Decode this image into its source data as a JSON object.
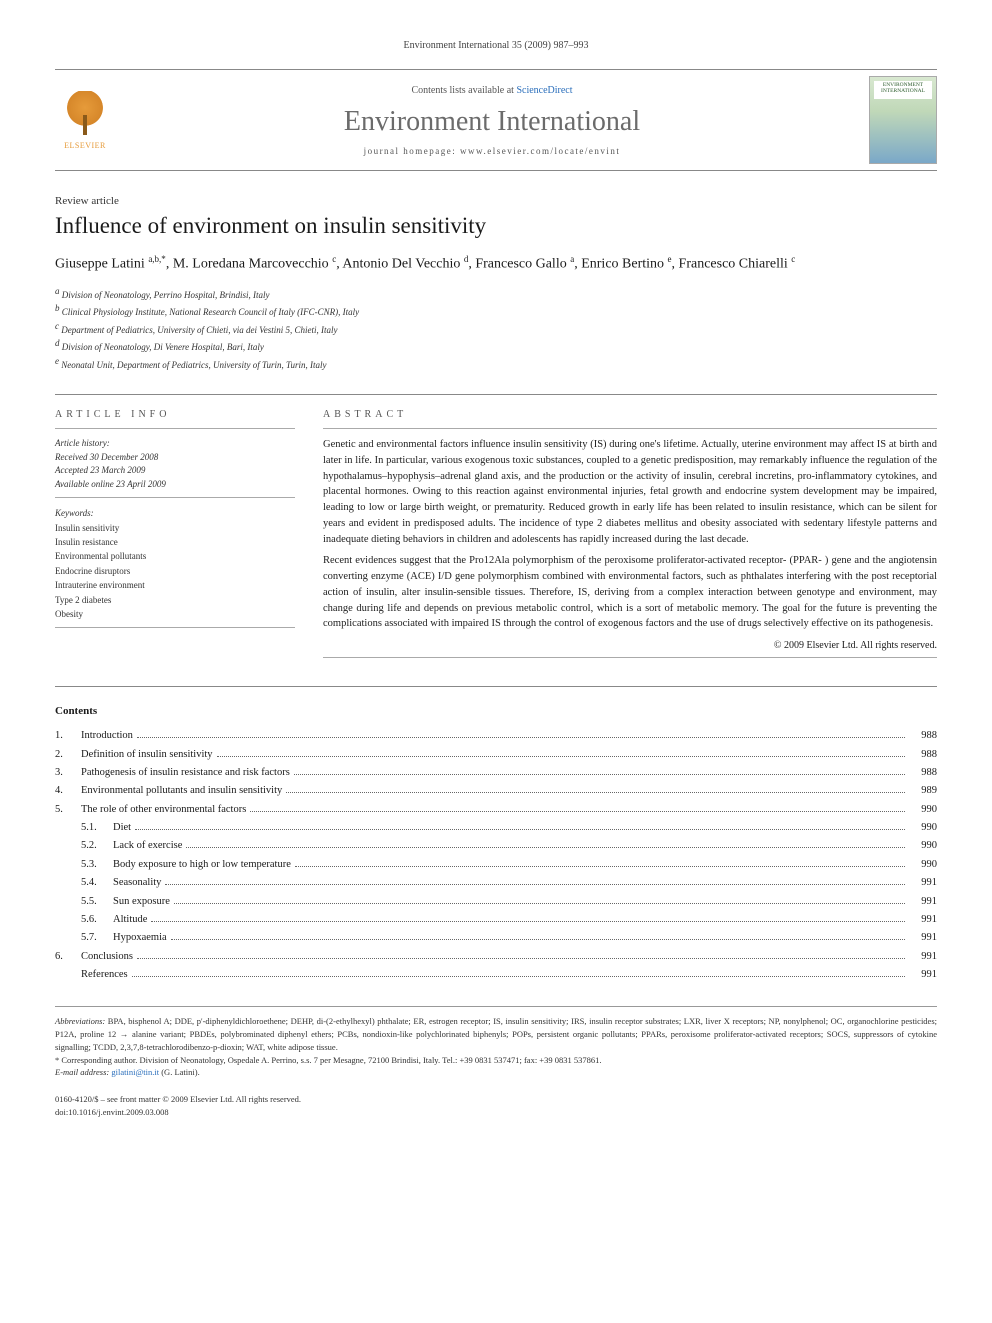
{
  "running_head": "Environment International 35 (2009) 987–993",
  "header": {
    "contents_prefix": "Contents lists available at ",
    "contents_link": "ScienceDirect",
    "journal_name": "Environment International",
    "homepage_prefix": "journal homepage: ",
    "homepage_url": "www.elsevier.com/locate/envint",
    "elsevier_label": "ELSEVIER",
    "cover_label": "ENVIRONMENT INTERNATIONAL"
  },
  "article": {
    "type": "Review article",
    "title": "Influence of environment on insulin sensitivity",
    "authors_html": "Giuseppe Latini <sup>a,b,*</sup>, M. Loredana Marcovecchio <sup>c</sup>, Antonio Del Vecchio <sup>d</sup>, Francesco Gallo <sup>a</sup>, Enrico Bertino <sup>e</sup>, Francesco Chiarelli <sup>c</sup>",
    "affiliations": [
      {
        "tag": "a",
        "text": "Division of Neonatology, Perrino Hospital, Brindisi, Italy"
      },
      {
        "tag": "b",
        "text": "Clinical Physiology Institute, National Research Council of Italy (IFC-CNR), Italy"
      },
      {
        "tag": "c",
        "text": "Department of Pediatrics, University of Chieti, via dei Vestini 5, Chieti, Italy"
      },
      {
        "tag": "d",
        "text": "Division of Neonatology, Di Venere Hospital, Bari, Italy"
      },
      {
        "tag": "e",
        "text": "Neonatal Unit, Department of Pediatrics, University of Turin, Turin, Italy"
      }
    ]
  },
  "info": {
    "head": "ARTICLE INFO",
    "history_label": "Article history:",
    "received": "Received 30 December 2008",
    "accepted": "Accepted 23 March 2009",
    "online": "Available online 23 April 2009",
    "keywords_label": "Keywords:",
    "keywords": [
      "Insulin sensitivity",
      "Insulin resistance",
      "Environmental pollutants",
      "Endocrine disruptors",
      "Intrauterine environment",
      "Type 2 diabetes",
      "Obesity"
    ]
  },
  "abstract": {
    "head": "ABSTRACT",
    "para1": "Genetic and environmental factors influence insulin sensitivity (IS) during one's lifetime. Actually, uterine environment may affect IS at birth and later in life. In particular, various exogenous toxic substances, coupled to a genetic predisposition, may remarkably influence the regulation of the hypothalamus–hypophysis–adrenal gland axis, and the production or the activity of insulin, cerebral incretins, pro-inflammatory cytokines, and placental hormones. Owing to this reaction against environmental injuries, fetal growth and endocrine system development may be impaired, leading to low or large birth weight, or prematurity. Reduced growth in early life has been related to insulin resistance, which can be silent for years and evident in predisposed adults. The incidence of type 2 diabetes mellitus and obesity associated with sedentary lifestyle patterns and inadequate dieting behaviors in children and adolescents has rapidly increased during the last decade.",
    "para2": "Recent evidences suggest that the Pro12Ala polymorphism of the peroxisome proliferator-activated receptor- (PPAR- ) gene and the angiotensin converting enzyme (ACE) I/D gene polymorphism combined with environmental factors, such as phthalates interfering with the post receptorial action of insulin, alter insulin-sensible tissues. Therefore, IS, deriving from a complex interaction between genotype and environment, may change during life and depends on previous metabolic control, which is a sort of metabolic memory. The goal for the future is preventing the complications associated with impaired IS through the control of exogenous factors and the use of drugs selectively effective on its pathogenesis.",
    "copyright": "© 2009 Elsevier Ltd. All rights reserved."
  },
  "toc": {
    "head": "Contents",
    "items": [
      {
        "num": "1.",
        "label": "Introduction",
        "page": "988",
        "sub": false
      },
      {
        "num": "2.",
        "label": "Definition of insulin sensitivity",
        "page": "988",
        "sub": false
      },
      {
        "num": "3.",
        "label": "Pathogenesis of insulin resistance and risk factors",
        "page": "988",
        "sub": false
      },
      {
        "num": "4.",
        "label": "Environmental pollutants and insulin sensitivity",
        "page": "989",
        "sub": false
      },
      {
        "num": "5.",
        "label": "The role of other environmental factors",
        "page": "990",
        "sub": false
      },
      {
        "num": "5.1.",
        "label": "Diet",
        "page": "990",
        "sub": true
      },
      {
        "num": "5.2.",
        "label": "Lack of exercise",
        "page": "990",
        "sub": true
      },
      {
        "num": "5.3.",
        "label": "Body exposure to high or low temperature",
        "page": "990",
        "sub": true
      },
      {
        "num": "5.4.",
        "label": "Seasonality",
        "page": "991",
        "sub": true
      },
      {
        "num": "5.5.",
        "label": "Sun exposure",
        "page": "991",
        "sub": true
      },
      {
        "num": "5.6.",
        "label": "Altitude",
        "page": "991",
        "sub": true
      },
      {
        "num": "5.7.",
        "label": "Hypoxaemia",
        "page": "991",
        "sub": true
      },
      {
        "num": "6.",
        "label": "Conclusions",
        "page": "991",
        "sub": false
      },
      {
        "num": "",
        "label": "References",
        "page": "991",
        "sub": false
      }
    ]
  },
  "footnotes": {
    "abbrev_label": "Abbreviations:",
    "abbrev_text": " BPA, bisphenol A; DDE, p'-diphenyldichloroethene; DEHP, di-(2-ethylhexyl) phthalate; ER, estrogen receptor; IS, insulin sensitivity; IRS, insulin receptor substrates; LXR, liver X receptors; NP, nonylphenol; OC, organochlorine pesticides; P12A, proline 12 → alanine variant; PBDEs, polybrominated diphenyl ethers; PCBs, nondioxin-like polychlorinated biphenyls; POPs, persistent organic pollutants; PPARs, peroxisome proliferator-activated receptors; SOCS, suppressors of cytokine signalling; TCDD, 2,3,7,8-tetrachlorodibenzo-p-dioxin; WAT, white adipose tissue.",
    "corresp_marker": "* ",
    "corresp": "Corresponding author. Division of Neonatology, Ospedale A. Perrino, s.s. 7 per Mesagne, 72100 Brindisi, Italy. Tel.: +39 0831 537471; fax: +39 0831 537861.",
    "email_label": "E-mail address:",
    "email": "gilatini@tin.it",
    "email_owner": " (G. Latini)."
  },
  "bottom": {
    "issn_line": "0160-4120/$ – see front matter © 2009 Elsevier Ltd. All rights reserved.",
    "doi": "doi:10.1016/j.envint.2009.03.008"
  },
  "colors": {
    "link": "#2a6ebb",
    "text": "#1a1a1a",
    "rule": "#888888",
    "journal_gray": "#6b6b6b",
    "elsevier_orange": "#e69b3a"
  }
}
